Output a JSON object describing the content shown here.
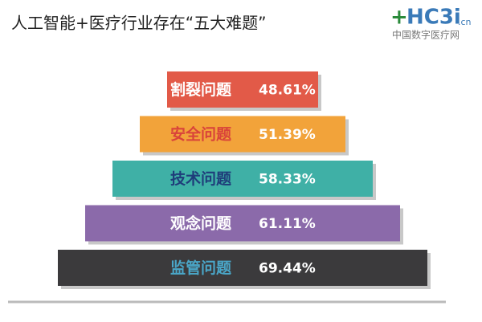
{
  "chart_data": {
    "type": "pyramid",
    "title": "人工智能+医疗行业存在“五大难题”",
    "logo": {
      "brand": "HC3i",
      "domain": ".cn",
      "subtitle": "中国数字医疗网"
    },
    "categories": [
      "割裂问题",
      "安全问题",
      "技术问题",
      "观念问题",
      "监管问题"
    ],
    "values": [
      48.61,
      51.39,
      58.33,
      61.11,
      69.44
    ],
    "value_labels": [
      "48.61%",
      "51.39%",
      "58.33%",
      "61.11%",
      "69.44%"
    ],
    "colors": [
      "#e25a48",
      "#f2a33a",
      "#3fb0a6",
      "#8b6aaa",
      "#3b3a3c"
    ],
    "label_colors": [
      "#ffffff",
      "#d9433a",
      "#1f3d7a",
      "#ffffff",
      "#4aa6c8"
    ]
  }
}
